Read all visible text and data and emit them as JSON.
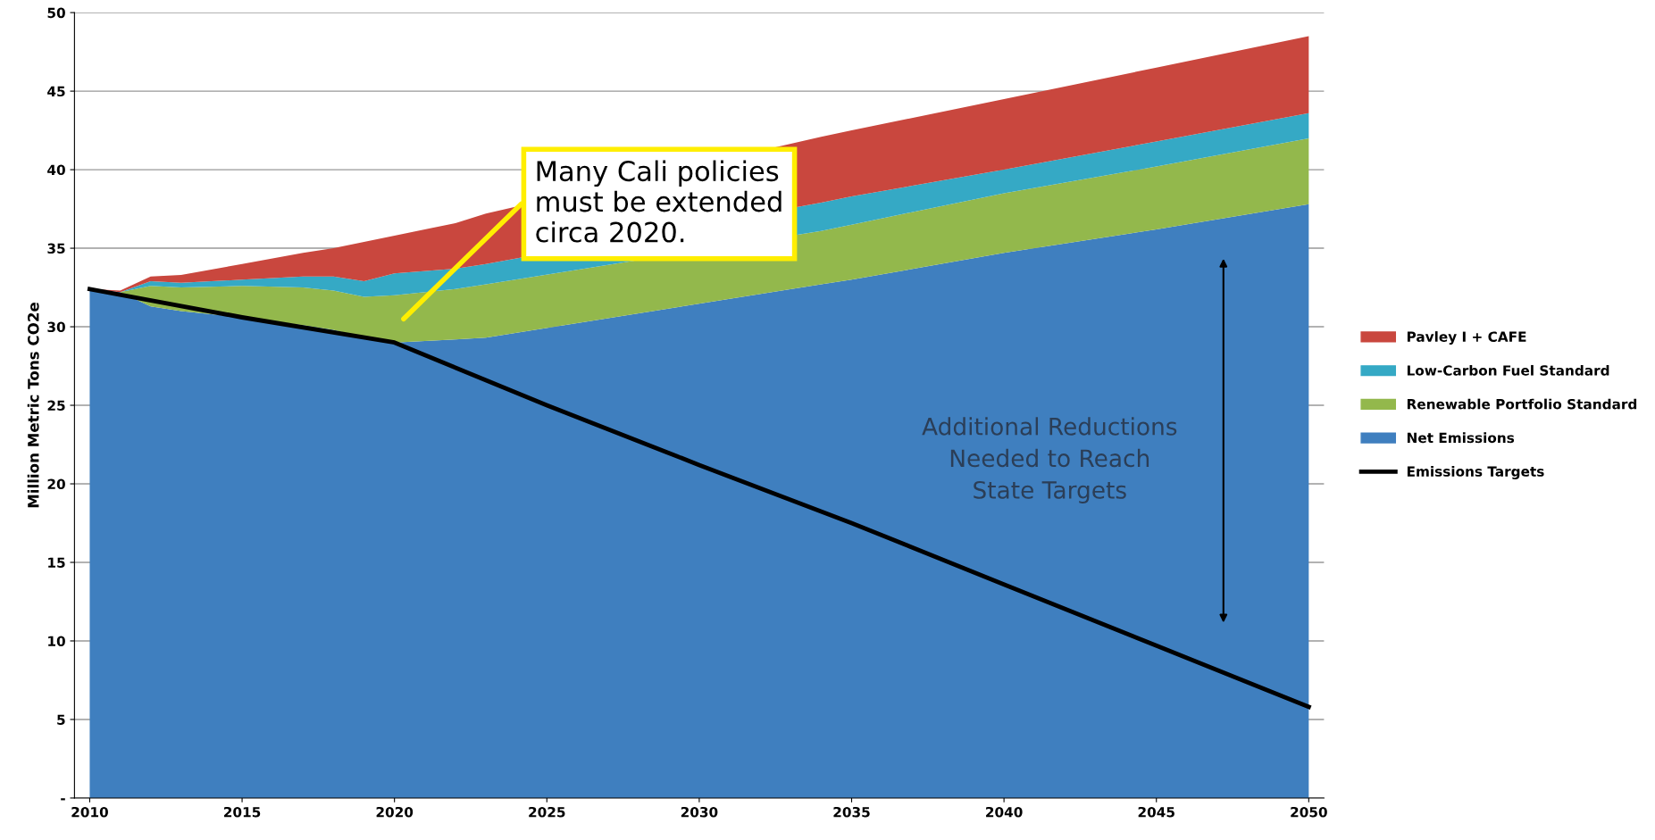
{
  "chart_data": {
    "type": "area",
    "stacked": true,
    "ylabel": "Million Metric Tons CO2e",
    "x": [
      2010,
      2011,
      2012,
      2013,
      2015,
      2017,
      2018,
      2019,
      2020,
      2022,
      2023,
      2034,
      2035,
      2040,
      2045,
      2050
    ],
    "series": [
      {
        "name": "Net Emissions",
        "color": "#3f7fbf",
        "values": [
          32.4,
          32.2,
          31.3,
          31.0,
          30.6,
          30.1,
          29.8,
          29.3,
          29.0,
          29.2,
          29.3,
          32.7,
          33.0,
          34.7,
          36.2,
          37.8
        ]
      },
      {
        "name": "Renewable Portfolio Standard",
        "color": "#93b84c",
        "values": [
          0,
          0,
          1.3,
          1.5,
          2.0,
          2.4,
          2.5,
          2.6,
          3.0,
          3.2,
          3.4,
          3.4,
          3.5,
          3.8,
          4.0,
          4.2
        ]
      },
      {
        "name": "Low-Carbon Fuel Standard",
        "color": "#35a9c5",
        "values": [
          0,
          0,
          0.3,
          0.3,
          0.4,
          0.7,
          0.9,
          1.0,
          1.4,
          1.3,
          1.3,
          1.8,
          1.8,
          1.5,
          1.6,
          1.6
        ]
      },
      {
        "name": "Pavley I + CAFE",
        "color": "#c9473e",
        "values": [
          0,
          0.1,
          0.3,
          0.5,
          1.0,
          1.5,
          1.8,
          2.5,
          2.4,
          2.9,
          3.2,
          4.2,
          4.2,
          4.5,
          4.7,
          4.9
        ]
      },
      {
        "name": "Emissions Targets",
        "type": "line",
        "color": "#000000",
        "x": [
          2010,
          2015,
          2020,
          2025,
          2030,
          2035,
          2040,
          2045,
          2050
        ],
        "values": [
          32.4,
          30.6,
          29.0,
          25.0,
          21.2,
          17.5,
          13.6,
          9.7,
          5.8
        ]
      }
    ],
    "xlim": [
      2009.5,
      2050.5
    ],
    "xticks": [
      2010,
      2015,
      2020,
      2025,
      2030,
      2035,
      2040,
      2045,
      2050
    ],
    "ylim": [
      0,
      50
    ],
    "yticks": [
      {
        "value": 0,
        "label": "-"
      },
      5,
      10,
      15,
      20,
      25,
      30,
      35,
      40,
      45,
      50
    ],
    "grid": "y",
    "legend": "right",
    "annotations": [
      "Many Cali policies\nmust be extended\ncirca 2020.",
      "Additional Reductions\nNeeded to Reach\nState Targets"
    ]
  }
}
